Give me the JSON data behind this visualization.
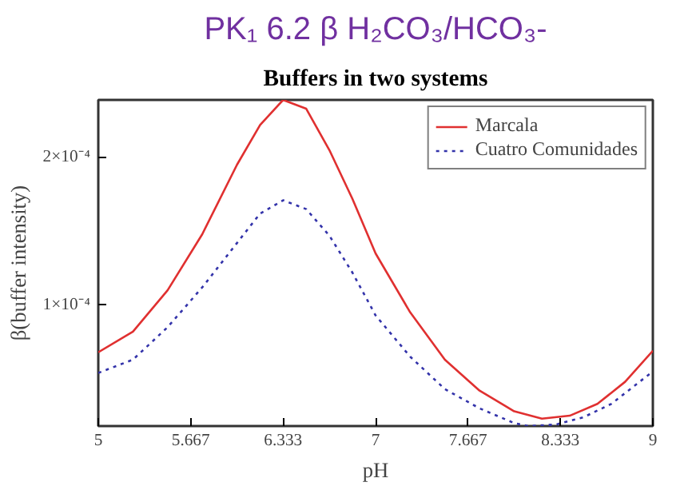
{
  "chart_data": {
    "type": "line",
    "title": "PK₁ 6.2 β H₂CO₃/HCO₃-",
    "subtitle": "Buffers in two systems",
    "xlabel": "pH",
    "ylabel": "β(buffer intensity)",
    "xlim": [
      5,
      9
    ],
    "xticks": [
      5,
      5.667,
      6.333,
      7,
      7.667,
      8.333,
      9
    ],
    "ylim": [
      1.8e-05,
      0.000239
    ],
    "yticks": [
      {
        "value": 0.0001,
        "label": "1×10⁻⁴"
      },
      {
        "value": 0.0002,
        "label": "2×10⁻⁴"
      }
    ],
    "grid": false,
    "legend": "top right",
    "series": [
      {
        "name": "Marcala",
        "color": "#e03030",
        "line_style": "solid",
        "x": [
          5.0,
          5.25,
          5.5,
          5.75,
          6.0,
          6.167,
          6.333,
          6.5,
          6.667,
          6.833,
          7.0,
          7.25,
          7.5,
          7.75,
          8.0,
          8.2,
          8.4,
          8.6,
          8.8,
          9.0
        ],
        "values": [
          6.8e-05,
          8.2e-05,
          0.00011,
          0.000148,
          0.000195,
          0.000222,
          0.000239,
          0.000233,
          0.000205,
          0.000172,
          0.000135,
          9.5e-05,
          6.3e-05,
          4.2e-05,
          2.8e-05,
          2.3e-05,
          2.5e-05,
          3.3e-05,
          4.8e-05,
          6.9e-05
        ]
      },
      {
        "name": "Cuatro Comunidades",
        "color": "#3333aa",
        "line_style": "dotted",
        "x": [
          5.0,
          5.25,
          5.5,
          5.75,
          6.0,
          6.167,
          6.333,
          6.5,
          6.667,
          6.833,
          7.0,
          7.25,
          7.5,
          7.75,
          8.0,
          8.1,
          8.3,
          8.5,
          8.7,
          9.0
        ],
        "values": [
          5.4e-05,
          6.3e-05,
          8.5e-05,
          0.000112,
          0.000142,
          0.000162,
          0.000171,
          0.000165,
          0.000147,
          0.000122,
          9.3e-05,
          6.5e-05,
          4.3e-05,
          3e-05,
          2e-05,
          1.8e-05,
          1.9e-05,
          2.4e-05,
          3.3e-05,
          5.5e-05
        ]
      }
    ]
  }
}
